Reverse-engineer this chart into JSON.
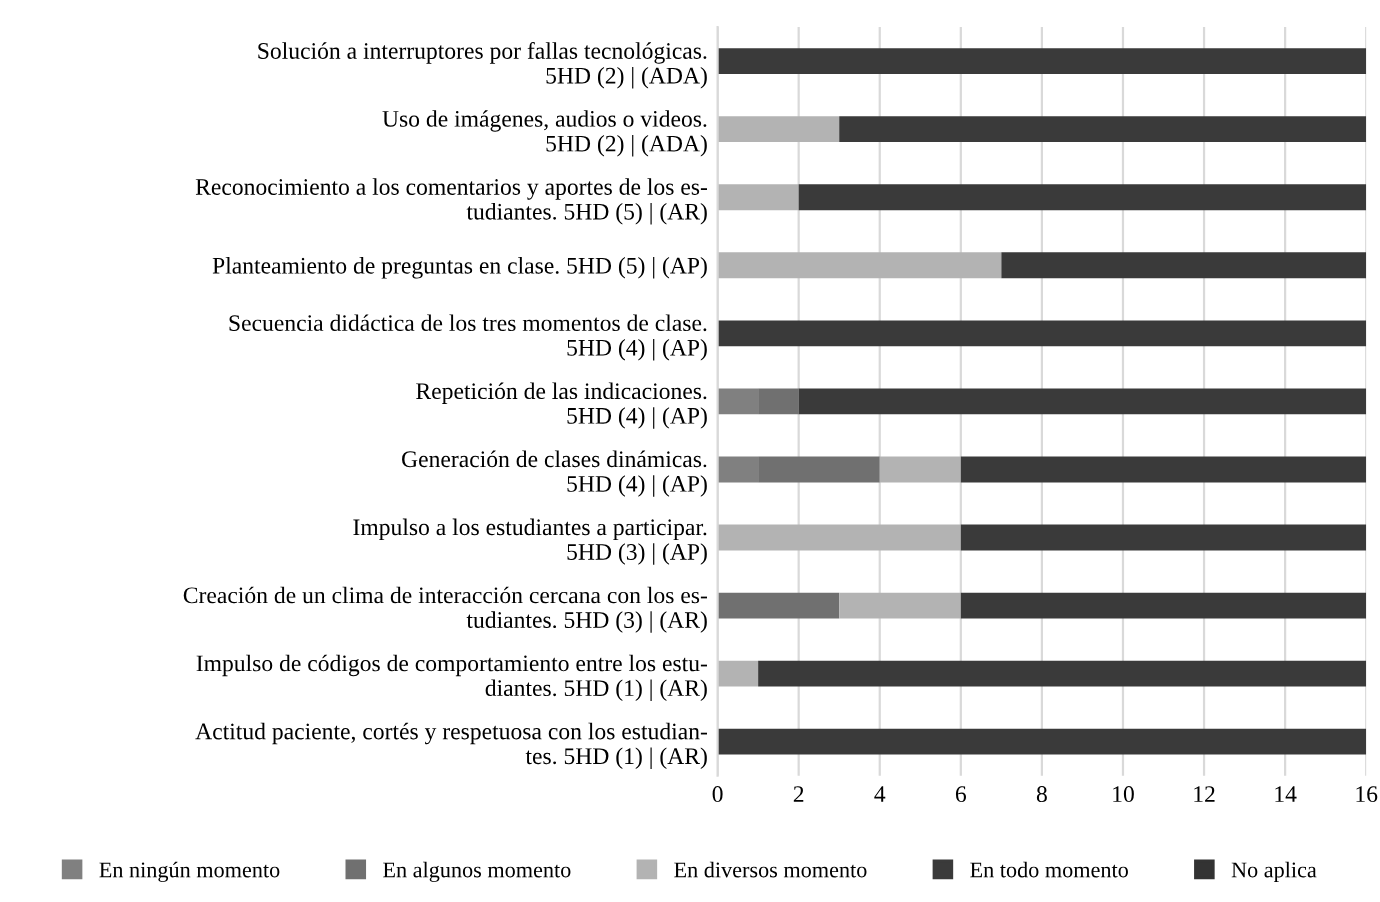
{
  "chart_data": {
    "type": "bar",
    "orientation": "horizontal",
    "stacked": true,
    "categories": [
      "Solución a interruptores por fallas tecnológicas.\n5HD (2) | (ADA)",
      "Uso de imágenes, audios o videos.\n5HD (2) | (ADA)",
      "Reconocimiento a los comentarios y aportes de los es-\ntudiantes. 5HD (5) | (AR)",
      "Planteamiento de preguntas en clase. 5HD (5) | (AP)",
      "Secuencia didáctica de los tres momentos de clase.\n5HD (4) | (AP)",
      "Repetición de las indicaciones.\n5HD (4) | (AP)",
      "Generación de clases dinámicas.\n5HD (4) | (AP)",
      "Impulso a los estudiantes a participar.\n5HD (3) | (AP)",
      "Creación de un clima de interacción cercana con los es-\ntudiantes. 5HD (3) | (AR)",
      "Impulso de códigos de comportamiento entre los estu-\ndiantes. 5HD (1) | (AR)",
      "Actitud paciente, cortés y respetuosa con los estudian-\ntes. 5HD (1) | (AR)"
    ],
    "series": [
      {
        "name": "En ningún momento",
        "color": "#808080",
        "values": [
          0,
          0,
          0,
          0,
          0,
          1,
          1,
          0,
          0,
          0,
          0
        ]
      },
      {
        "name": "En algunos momento",
        "color": "#707070",
        "values": [
          0,
          0,
          0,
          0,
          0,
          1,
          3,
          0,
          3,
          0,
          0
        ]
      },
      {
        "name": "En diversos momento",
        "color": "#b3b3b3",
        "values": [
          0,
          3,
          2,
          7,
          0,
          0,
          2,
          6,
          3,
          1,
          0
        ]
      },
      {
        "name": "En todo momento",
        "color": "#3a3a3a",
        "values": [
          16,
          13,
          14,
          9,
          16,
          14,
          10,
          10,
          10,
          15,
          16
        ]
      },
      {
        "name": "No aplica",
        "color": "#333333",
        "values": [
          0,
          0,
          0,
          0,
          0,
          0,
          0,
          0,
          0,
          0,
          0
        ]
      }
    ],
    "xlim": [
      0,
      16
    ],
    "xticks": [
      0,
      2,
      4,
      6,
      8,
      10,
      12,
      14,
      16
    ],
    "grid": "x",
    "legend": "bottom"
  }
}
